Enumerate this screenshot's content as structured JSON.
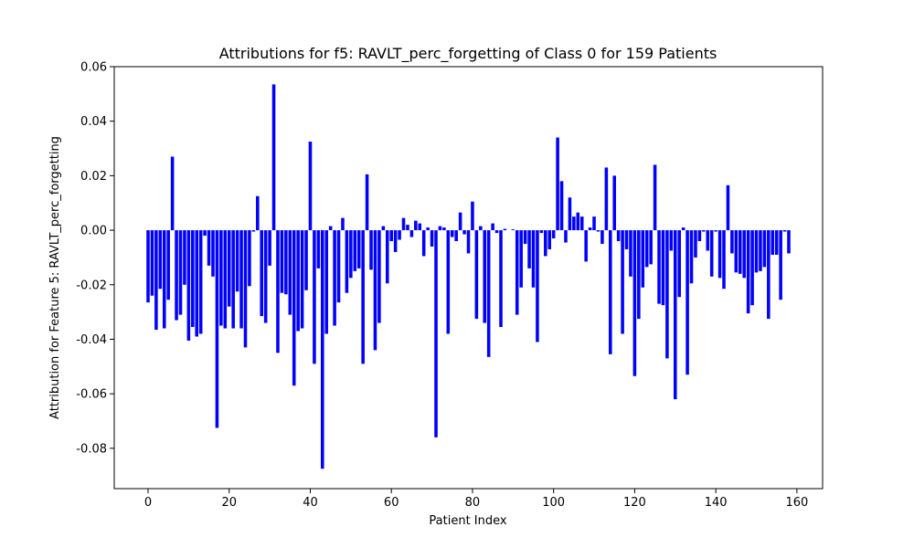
{
  "chart_data": {
    "type": "bar",
    "title": "Attributions for f5: RAVLT_perc_forgetting of Class 0 for 159 Patients",
    "xlabel": "Patient Index",
    "ylabel": "Attribution for Feature 5: RAVLT_perc_forgetting",
    "color": "#0000ff",
    "values": [
      -0.0265,
      -0.024,
      -0.0365,
      -0.0215,
      -0.036,
      -0.0255,
      0.027,
      -0.033,
      -0.031,
      -0.02,
      -0.0405,
      -0.0355,
      -0.039,
      -0.038,
      -0.002,
      -0.013,
      -0.017,
      -0.0725,
      -0.035,
      -0.036,
      -0.028,
      -0.036,
      -0.0225,
      -0.036,
      -0.043,
      -0.0205,
      -0.0005,
      0.0125,
      -0.0315,
      -0.034,
      -0.013,
      0.0535,
      -0.045,
      -0.023,
      -0.0235,
      -0.031,
      -0.057,
      -0.037,
      -0.036,
      -0.022,
      0.0325,
      -0.049,
      -0.014,
      -0.0875,
      -0.038,
      0.0015,
      -0.035,
      -0.0265,
      0.0045,
      -0.023,
      -0.0175,
      -0.015,
      -0.014,
      -0.049,
      0.0205,
      -0.0145,
      -0.044,
      -0.034,
      0.0015,
      -0.0195,
      -0.004,
      -0.008,
      -0.0035,
      0.0045,
      0.002,
      -0.0025,
      0.0035,
      0.0025,
      -0.0095,
      0.001,
      -0.006,
      -0.076,
      0.0015,
      0.001,
      -0.038,
      -0.0025,
      -0.004,
      0.0065,
      -0.0015,
      -0.0085,
      0.0105,
      -0.0325,
      0.0015,
      -0.034,
      -0.0465,
      0.0025,
      -0.001,
      -0.0355,
      0.0005,
      0,
      0.0003,
      -0.031,
      -0.021,
      -0.005,
      -0.014,
      -0.021,
      -0.041,
      -0.001,
      -0.0095,
      -0.007,
      -0.003,
      0.034,
      0.018,
      -0.0045,
      0.012,
      0.005,
      0.0065,
      0.005,
      -0.0115,
      0.001,
      0.005,
      -0.0005,
      -0.005,
      0.023,
      -0.0455,
      0.02,
      -0.004,
      -0.038,
      -0.007,
      -0.017,
      -0.0535,
      -0.0325,
      -0.021,
      -0.0135,
      -0.0125,
      0.024,
      -0.027,
      -0.0275,
      -0.047,
      -0.0075,
      -0.062,
      -0.0245,
      0.001,
      -0.053,
      -0.0195,
      -0.01,
      -0.004,
      -0.0005,
      -0.0075,
      -0.017,
      -0.0005,
      -0.0175,
      -0.0215,
      0.0165,
      -0.0085,
      -0.0155,
      -0.016,
      -0.0175,
      -0.0305,
      -0.0275,
      -0.0155,
      -0.015,
      -0.0135,
      -0.0325,
      -0.009,
      -0.009,
      -0.0255,
      -0.0005,
      -0.0085
    ],
    "xlim": [
      -8.34,
      166.34
    ],
    "xticks": [
      0,
      20,
      40,
      60,
      80,
      100,
      120,
      140,
      160
    ],
    "ylim": [
      -0.0948,
      0.06
    ],
    "yticks": [
      -0.08,
      -0.06,
      -0.04,
      -0.02,
      {
        "value": 0,
        "label": "0.00"
      },
      0.02,
      0.04,
      0.06
    ]
  }
}
